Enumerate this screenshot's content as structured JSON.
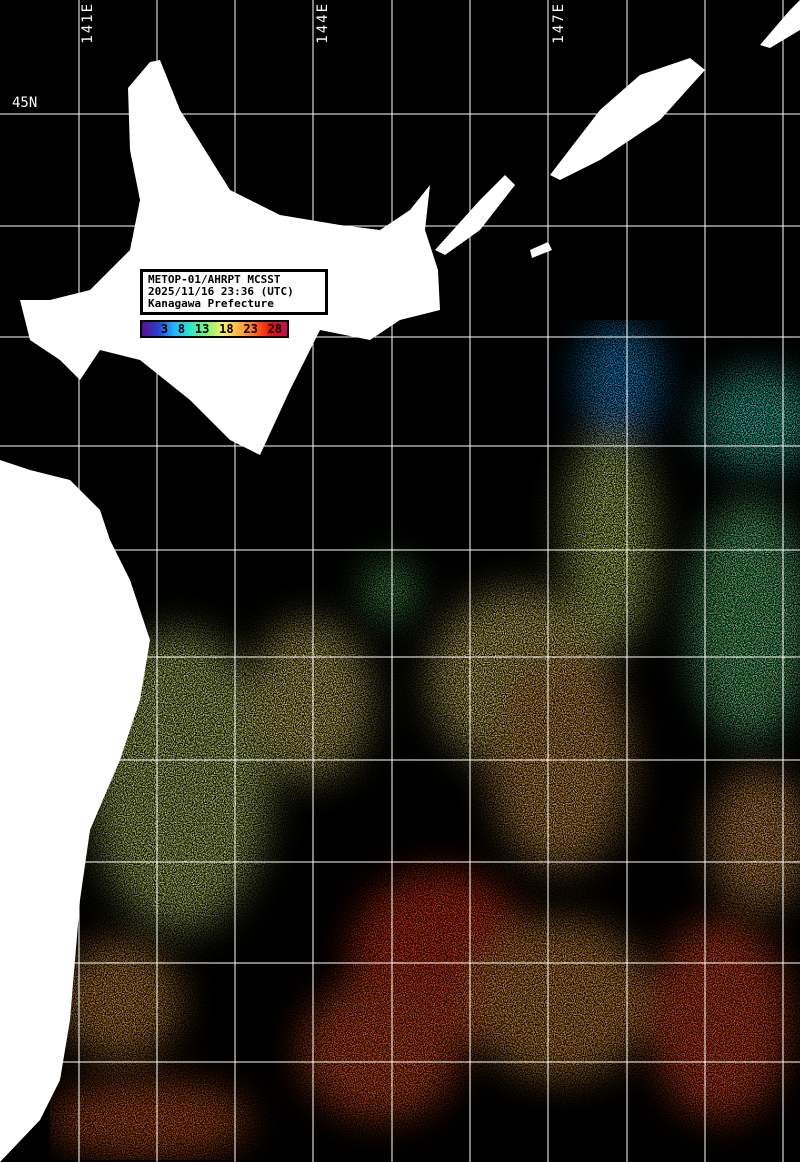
{
  "info_box": {
    "line1": "METOP-01/AHRPT MCSST",
    "line2": "2025/11/16 23:36 (UTC)",
    "line3": "Kanagawa Prefecture"
  },
  "color_scale": {
    "labels": [
      "3",
      "8",
      "13",
      "18",
      "23",
      "28"
    ],
    "unit_hint": "sea surface temperature",
    "colors": [
      "#5a0f8c",
      "#2a3fd0",
      "#1fb5ff",
      "#2fe6c8",
      "#7cf27c",
      "#f5f06a",
      "#ffb347",
      "#ff6a20",
      "#e81010",
      "#c0104a"
    ]
  },
  "grid_labels": {
    "lon": [
      "141E",
      "144E",
      "147E"
    ],
    "lat": [
      "45N"
    ]
  },
  "colors": {
    "land": "#ffffff",
    "no_data": "#000000",
    "grid": "#ffffff"
  }
}
